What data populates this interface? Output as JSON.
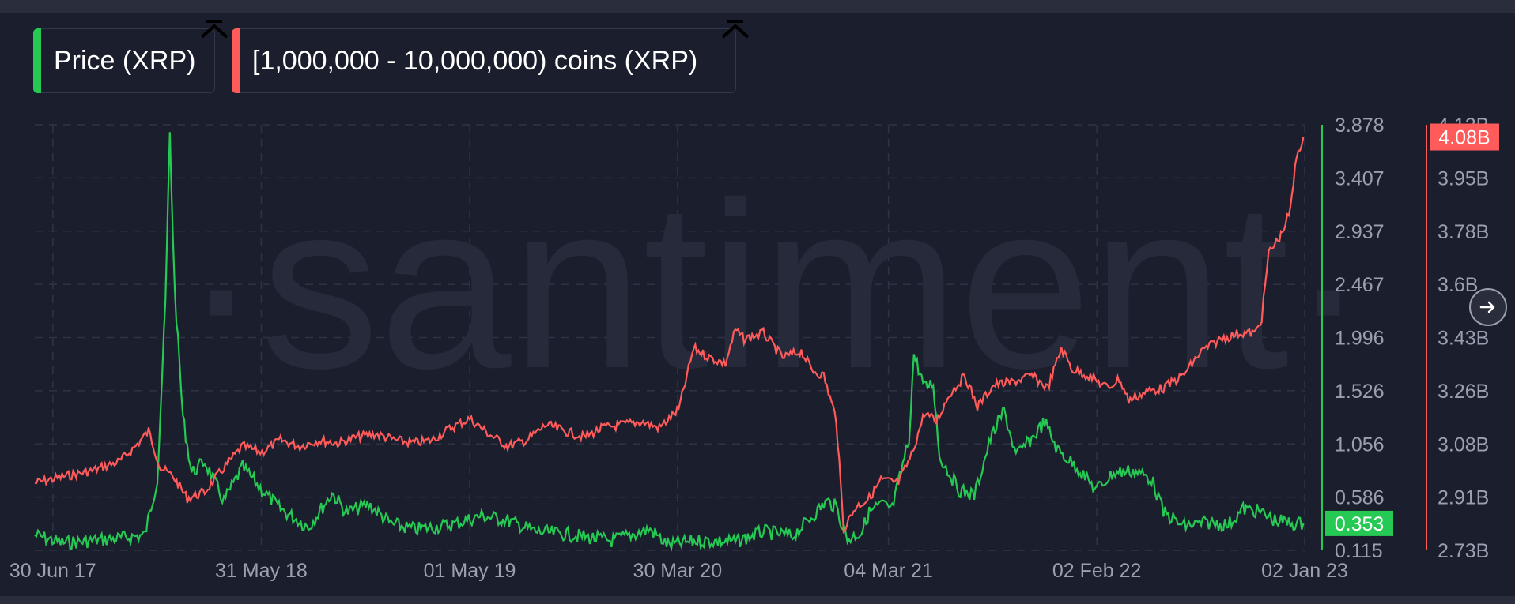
{
  "legend": {
    "price_label": "Price (XRP)",
    "holders_label": "[1,000,000 - 10,000,000) coins (XRP)"
  },
  "watermark": "·santiment·",
  "colors": {
    "background": "#1b1e2c",
    "price": "#26c953",
    "holders": "#ff5b5b",
    "axis_text": "#9aa0b0",
    "grid": "#2f3346"
  },
  "icons": {
    "collapse": "chevron-up-icon",
    "next": "arrow-right-icon"
  },
  "chart_data": {
    "type": "line",
    "title": "",
    "x_tick_labels": [
      "30 Jun 17",
      "31 May 18",
      "01 May 19",
      "30 Mar 20",
      "04 Mar 21",
      "02 Feb 22",
      "02 Jan 23"
    ],
    "x_range": [
      "2017-06-01",
      "2023-01-02"
    ],
    "y_price_ticks": [
      "3.878",
      "3.407",
      "2.937",
      "2.467",
      "1.996",
      "1.526",
      "1.056",
      "0.586",
      "0.115"
    ],
    "y_holders_ticks": [
      "4.12B",
      "3.95B",
      "3.78B",
      "3.6B",
      "3.43B",
      "3.26B",
      "3.08B",
      "2.91B",
      "2.73B"
    ],
    "y_price_range": [
      0.115,
      3.878
    ],
    "y_holders_range": [
      2.73,
      4.12
    ],
    "y_holders_unit": "B",
    "grid": true,
    "current_price_label": "0.353",
    "current_holders_label": "4.08B",
    "series": [
      {
        "name": "Price (XRP)",
        "axis": "left",
        "points": [
          [
            "2017-06-01",
            0.25
          ],
          [
            "2017-07-15",
            0.18
          ],
          [
            "2017-09-01",
            0.2
          ],
          [
            "2017-10-15",
            0.22
          ],
          [
            "2017-11-25",
            0.25
          ],
          [
            "2017-12-15",
            0.75
          ],
          [
            "2017-12-28",
            2.3
          ],
          [
            "2018-01-04",
            3.8
          ],
          [
            "2018-01-12",
            2.4
          ],
          [
            "2018-01-25",
            1.3
          ],
          [
            "2018-02-08",
            0.8
          ],
          [
            "2018-03-01",
            0.9
          ],
          [
            "2018-04-01",
            0.55
          ],
          [
            "2018-05-01",
            0.85
          ],
          [
            "2018-06-01",
            0.65
          ],
          [
            "2018-07-01",
            0.48
          ],
          [
            "2018-08-15",
            0.32
          ],
          [
            "2018-09-22",
            0.62
          ],
          [
            "2018-10-15",
            0.45
          ],
          [
            "2018-11-20",
            0.52
          ],
          [
            "2018-12-25",
            0.35
          ],
          [
            "2019-02-01",
            0.3
          ],
          [
            "2019-04-01",
            0.34
          ],
          [
            "2019-05-20",
            0.42
          ],
          [
            "2019-07-01",
            0.38
          ],
          [
            "2019-08-15",
            0.28
          ],
          [
            "2019-10-01",
            0.26
          ],
          [
            "2019-12-15",
            0.2
          ],
          [
            "2020-02-15",
            0.3
          ],
          [
            "2020-03-15",
            0.16
          ],
          [
            "2020-05-01",
            0.2
          ],
          [
            "2020-07-01",
            0.19
          ],
          [
            "2020-08-15",
            0.28
          ],
          [
            "2020-10-01",
            0.24
          ],
          [
            "2020-11-25",
            0.55
          ],
          [
            "2020-12-10",
            0.5
          ],
          [
            "2020-12-28",
            0.21
          ],
          [
            "2021-01-20",
            0.28
          ],
          [
            "2021-02-01",
            0.45
          ],
          [
            "2021-02-20",
            0.52
          ],
          [
            "2021-03-10",
            0.48
          ],
          [
            "2021-04-06",
            1.1
          ],
          [
            "2021-04-14",
            1.85
          ],
          [
            "2021-05-01",
            1.55
          ],
          [
            "2021-05-15",
            1.6
          ],
          [
            "2021-05-25",
            0.95
          ],
          [
            "2021-06-25",
            0.65
          ],
          [
            "2021-07-20",
            0.6
          ],
          [
            "2021-08-15",
            1.1
          ],
          [
            "2021-09-06",
            1.35
          ],
          [
            "2021-09-25",
            0.95
          ],
          [
            "2021-10-20",
            1.1
          ],
          [
            "2021-11-10",
            1.25
          ],
          [
            "2021-12-01",
            1.0
          ],
          [
            "2022-01-01",
            0.85
          ],
          [
            "2022-02-01",
            0.65
          ],
          [
            "2022-03-01",
            0.8
          ],
          [
            "2022-04-01",
            0.82
          ],
          [
            "2022-05-01",
            0.75
          ],
          [
            "2022-05-20",
            0.45
          ],
          [
            "2022-06-20",
            0.33
          ],
          [
            "2022-08-01",
            0.36
          ],
          [
            "2022-09-01",
            0.34
          ],
          [
            "2022-09-25",
            0.48
          ],
          [
            "2022-10-20",
            0.46
          ],
          [
            "2022-11-15",
            0.38
          ],
          [
            "2022-12-15",
            0.35
          ],
          [
            "2022-12-31",
            0.353
          ]
        ]
      },
      {
        "name": "[1,000,000 - 10,000,000) coins (XRP)",
        "axis": "right",
        "points": [
          [
            "2017-06-01",
            2.95
          ],
          [
            "2017-07-15",
            2.97
          ],
          [
            "2017-09-01",
            2.99
          ],
          [
            "2017-10-15",
            3.02
          ],
          [
            "2017-11-10",
            3.07
          ],
          [
            "2017-12-01",
            3.12
          ],
          [
            "2017-12-20",
            3.0
          ],
          [
            "2018-01-10",
            2.97
          ],
          [
            "2018-02-01",
            2.9
          ],
          [
            "2018-03-01",
            2.92
          ],
          [
            "2018-04-01",
            3.0
          ],
          [
            "2018-05-01",
            3.07
          ],
          [
            "2018-06-01",
            3.05
          ],
          [
            "2018-07-01",
            3.09
          ],
          [
            "2018-08-01",
            3.07
          ],
          [
            "2018-09-01",
            3.09
          ],
          [
            "2018-10-01",
            3.08
          ],
          [
            "2018-11-01",
            3.1
          ],
          [
            "2018-12-01",
            3.11
          ],
          [
            "2019-01-01",
            3.09
          ],
          [
            "2019-02-01",
            3.08
          ],
          [
            "2019-03-01",
            3.09
          ],
          [
            "2019-04-01",
            3.13
          ],
          [
            "2019-05-01",
            3.16
          ],
          [
            "2019-06-01",
            3.11
          ],
          [
            "2019-07-01",
            3.07
          ],
          [
            "2019-08-01",
            3.09
          ],
          [
            "2019-09-01",
            3.14
          ],
          [
            "2019-10-01",
            3.12
          ],
          [
            "2019-11-01",
            3.1
          ],
          [
            "2019-12-01",
            3.13
          ],
          [
            "2020-01-01",
            3.14
          ],
          [
            "2020-02-01",
            3.15
          ],
          [
            "2020-03-01",
            3.13
          ],
          [
            "2020-04-01",
            3.19
          ],
          [
            "2020-04-25",
            3.39
          ],
          [
            "2020-05-20",
            3.36
          ],
          [
            "2020-06-15",
            3.34
          ],
          [
            "2020-07-01",
            3.45
          ],
          [
            "2020-07-15",
            3.42
          ],
          [
            "2020-08-15",
            3.44
          ],
          [
            "2020-09-15",
            3.36
          ],
          [
            "2020-10-15",
            3.38
          ],
          [
            "2020-11-01",
            3.32
          ],
          [
            "2020-11-20",
            3.3
          ],
          [
            "2020-12-10",
            3.16
          ],
          [
            "2020-12-22",
            2.8
          ],
          [
            "2021-01-10",
            2.87
          ],
          [
            "2021-02-01",
            2.9
          ],
          [
            "2021-02-20",
            2.96
          ],
          [
            "2021-03-20",
            2.95
          ],
          [
            "2021-04-10",
            3.04
          ],
          [
            "2021-05-01",
            3.18
          ],
          [
            "2021-05-20",
            3.15
          ],
          [
            "2021-06-10",
            3.24
          ],
          [
            "2021-07-05",
            3.3
          ],
          [
            "2021-07-25",
            3.2
          ],
          [
            "2021-08-20",
            3.27
          ],
          [
            "2021-09-20",
            3.28
          ],
          [
            "2021-10-20",
            3.3
          ],
          [
            "2021-11-15",
            3.26
          ],
          [
            "2021-12-07",
            3.39
          ],
          [
            "2021-12-25",
            3.32
          ],
          [
            "2022-01-20",
            3.3
          ],
          [
            "2022-02-20",
            3.26
          ],
          [
            "2022-03-10",
            3.29
          ],
          [
            "2022-03-25",
            3.22
          ],
          [
            "2022-04-25",
            3.25
          ],
          [
            "2022-05-20",
            3.26
          ],
          [
            "2022-06-20",
            3.3
          ],
          [
            "2022-07-20",
            3.38
          ],
          [
            "2022-08-20",
            3.42
          ],
          [
            "2022-09-20",
            3.44
          ],
          [
            "2022-10-15",
            3.44
          ],
          [
            "2022-10-25",
            3.49
          ],
          [
            "2022-11-05",
            3.7
          ],
          [
            "2022-11-25",
            3.76
          ],
          [
            "2022-12-10",
            3.84
          ],
          [
            "2022-12-20",
            4.02
          ],
          [
            "2022-12-31",
            4.08
          ]
        ]
      }
    ]
  }
}
